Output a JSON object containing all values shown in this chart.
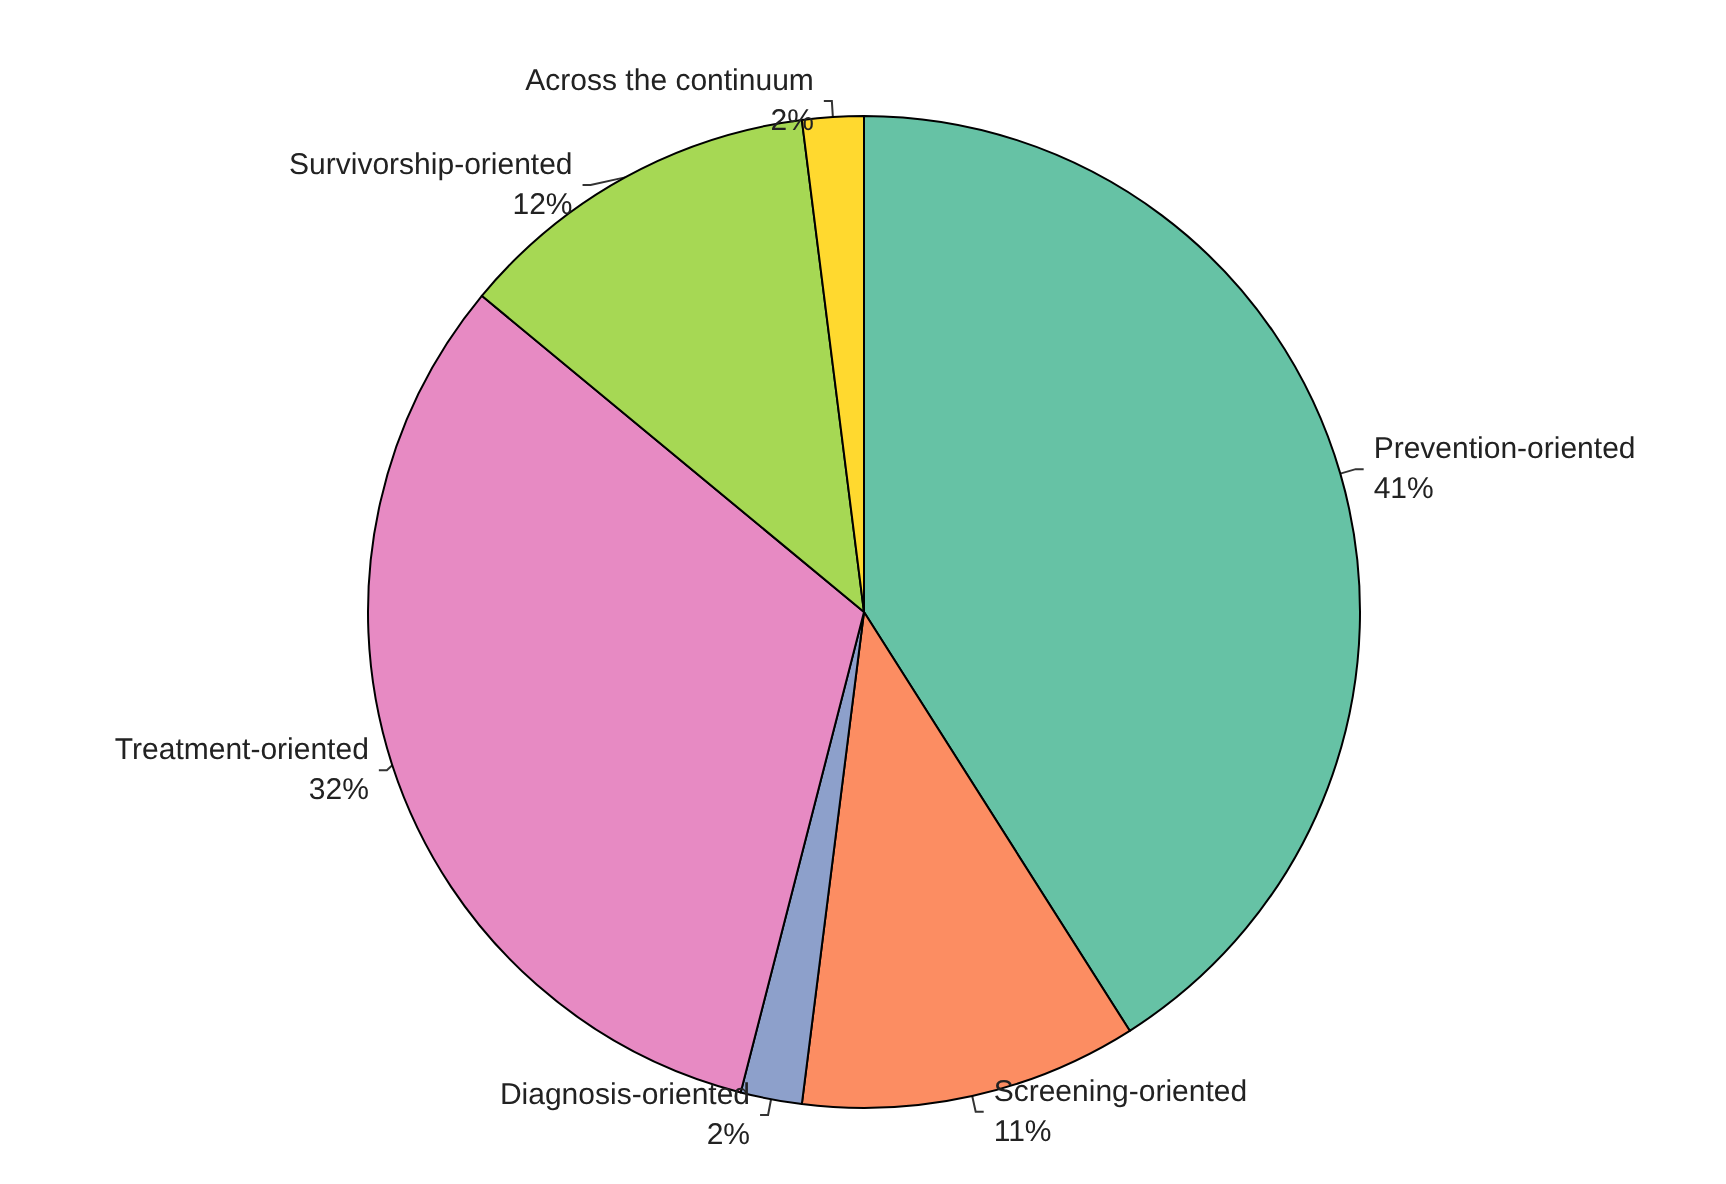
{
  "chart_data": {
    "type": "pie",
    "categories": [
      "Prevention-oriented",
      "Screening-oriented",
      "Diagnosis-oriented",
      "Treatment-oriented",
      "Survivorship-oriented",
      "Across the continuum"
    ],
    "values": [
      41,
      11,
      2,
      32,
      12,
      2
    ],
    "value_labels": [
      "41%",
      "11%",
      "2%",
      "32%",
      "12%",
      "2%"
    ],
    "colors": [
      "#66c2a5",
      "#fc8d62",
      "#8da0cb",
      "#e78ac3",
      "#a6d854",
      "#ffd92f"
    ],
    "legend": false
  }
}
